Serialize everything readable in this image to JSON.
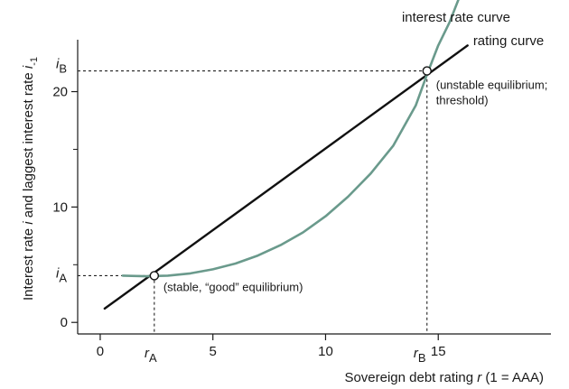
{
  "chart_data": {
    "type": "line",
    "title": "",
    "xlabel": {
      "text": "Sovereign debt rating ",
      "var": "r",
      "suffix": " (1 = AAA)"
    },
    "ylabel": {
      "pre": "Interest rate ",
      "var1": "i",
      "mid": " and laggest interest rate ",
      "var2": "i",
      "sub": "-1"
    },
    "xlim": [
      -1,
      20
    ],
    "ylim": [
      -1,
      24.5
    ],
    "x_ticks": [
      0,
      5,
      10,
      15
    ],
    "y_ticks": [
      0,
      10,
      20
    ],
    "x_tick_labels": [
      "0",
      "5",
      "10",
      "15"
    ],
    "y_tick_labels": [
      "0",
      "10",
      "20"
    ],
    "grid": false,
    "series": [
      {
        "name": "rating curve",
        "color": "#111111",
        "x": [
          0.2,
          16.3
        ],
        "y": [
          1.2,
          24.0
        ]
      },
      {
        "name": "interest rate curve",
        "color": "#6a9a8c",
        "x": [
          1.0,
          2.0,
          3.0,
          4.0,
          5.0,
          6.0,
          7.0,
          8.0,
          9.0,
          10.0,
          11.0,
          12.0,
          13.0,
          14.0,
          14.5,
          15.0,
          15.5,
          15.9
        ],
        "y": [
          4.05,
          4.0,
          4.05,
          4.25,
          4.6,
          5.1,
          5.8,
          6.7,
          7.8,
          9.2,
          10.9,
          12.9,
          15.3,
          18.8,
          21.5,
          24.0,
          26.0,
          28.0
        ]
      }
    ],
    "equilibria": [
      {
        "x": 2.4,
        "y": 4.05,
        "label": "(stable, “good” equilibrium)"
      },
      {
        "x": 14.5,
        "y": 21.8,
        "label_lines": [
          "(unstable equilibrium;",
          "threshold)"
        ]
      }
    ],
    "reference_labels": {
      "rA": {
        "base": "r",
        "sub": "A"
      },
      "rB": {
        "base": "r",
        "sub": "B"
      },
      "iA": {
        "base": "i",
        "sub": "A"
      },
      "iB": {
        "base": "i",
        "sub": "B"
      }
    },
    "colors": {
      "axis": "#1a1a1a",
      "rating": "#111111",
      "interest": "#6a9a8c"
    }
  }
}
